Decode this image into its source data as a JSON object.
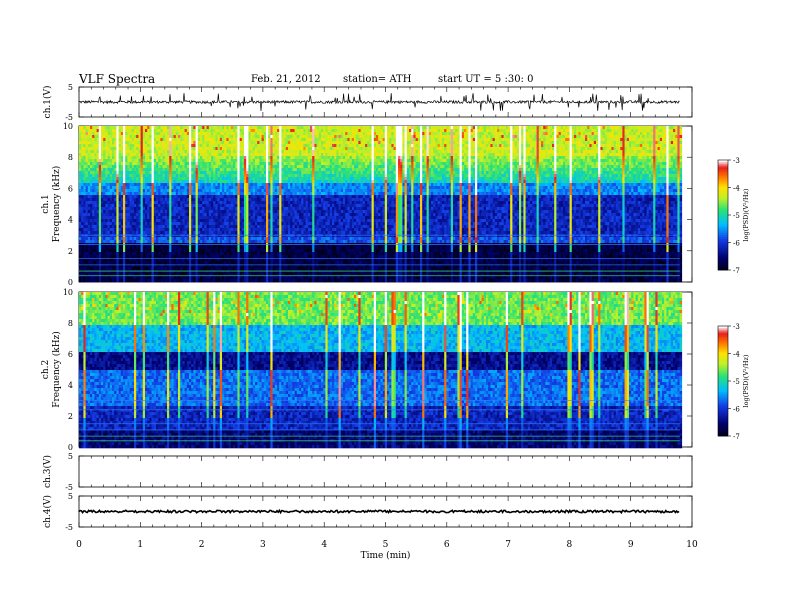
{
  "header": {
    "title": "VLF  Spectra",
    "date": "Feb. 21, 2012",
    "station": "station= ATH",
    "start": "start  UT  =   5 :30: 0"
  },
  "chart_data": [
    {
      "type": "line",
      "panel": "ch1-waveform",
      "ylabel": "ch.1(V)",
      "ylim": [
        -5,
        5
      ],
      "yticks": [
        "5",
        "-5"
      ],
      "baseline": 0,
      "note_trace": "noisy waveform with spikes up to about +3 / -2 V"
    },
    {
      "type": "heatmap",
      "panel": "ch1-spectrogram",
      "ylabel_lines": [
        "ch.1",
        "Frequency  (kHz)"
      ],
      "ylim": [
        0,
        10
      ],
      "yticks": [
        "0",
        "2",
        "4",
        "6",
        "8",
        "10"
      ],
      "colorbar": {
        "label": "log(PSD)(V²/Hz)",
        "ticks": [
          "-3",
          "-4",
          "-5",
          "-6",
          "-7"
        ],
        "range": [
          -7,
          -3
        ],
        "colors": [
          "#000018",
          "#000090",
          "#2060ff",
          "#00d0ff",
          "#20e060",
          "#c0f020",
          "#ffe000",
          "#ff6000",
          "#ff2020",
          "#ffffff"
        ]
      }
    },
    {
      "type": "heatmap",
      "panel": "ch2-spectrogram",
      "ylabel_lines": [
        "ch.2",
        "Frequency  (kHz)"
      ],
      "ylim": [
        0,
        10
      ],
      "yticks": [
        "0",
        "2",
        "4",
        "6",
        "8",
        "10"
      ],
      "colorbar": {
        "label": "log(PSD)(V²/Hz)",
        "ticks": [
          "-3",
          "-4",
          "-5",
          "-6",
          "-7"
        ],
        "range": [
          -7,
          -3
        ]
      }
    },
    {
      "type": "line",
      "panel": "ch3-waveform",
      "ylabel": "ch.3(V)",
      "ylim": [
        -5,
        5
      ],
      "yticks": [
        "5",
        "-5"
      ]
    },
    {
      "type": "line",
      "panel": "ch4-waveform",
      "ylabel": "ch.4(V)",
      "ylim": [
        -5,
        5
      ],
      "yticks": [
        "5",
        "-5"
      ],
      "baseline": 0
    }
  ],
  "x_axis": {
    "label": "Time  (min)",
    "ticks": [
      "0",
      "1",
      "2",
      "3",
      "4",
      "5",
      "6",
      "7",
      "8",
      "9",
      "10"
    ],
    "xlim": [
      0,
      10
    ],
    "data_end": 9.8
  }
}
